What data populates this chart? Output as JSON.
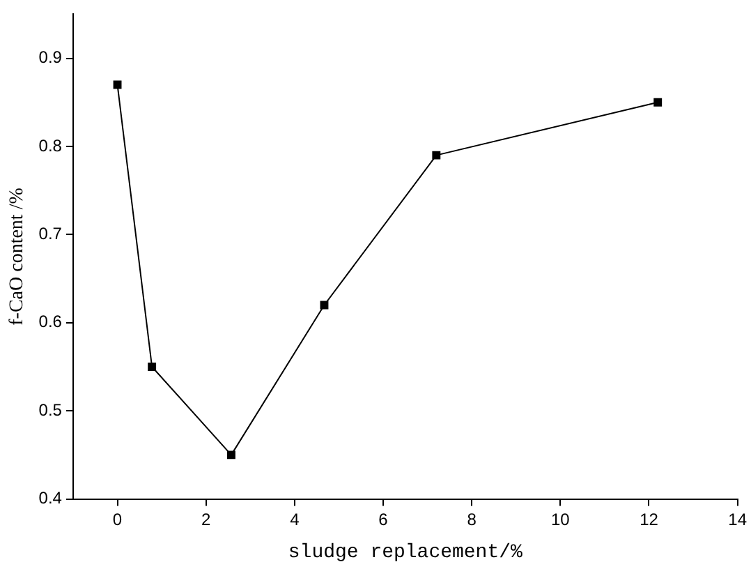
{
  "chart_data": {
    "type": "line",
    "xlabel": "sludge replacement/%",
    "ylabel": "f-CaO content /%",
    "x": [
      0,
      0.78,
      2.57,
      4.67,
      7.2,
      12.2
    ],
    "series": [
      {
        "color": "#000000",
        "values": [
          0.87,
          0.55,
          0.45,
          0.62,
          0.79,
          0.85
        ]
      }
    ],
    "xlim": [
      -1,
      14
    ],
    "xticks": [
      0,
      2,
      4,
      6,
      8,
      10,
      12,
      14
    ],
    "ylim": [
      0.4,
      0.95
    ],
    "yticks": [
      0.4,
      0.5,
      0.6,
      0.7,
      0.8,
      0.9
    ],
    "grid": false,
    "legend": false,
    "marker": "square",
    "line_style": "solid"
  }
}
